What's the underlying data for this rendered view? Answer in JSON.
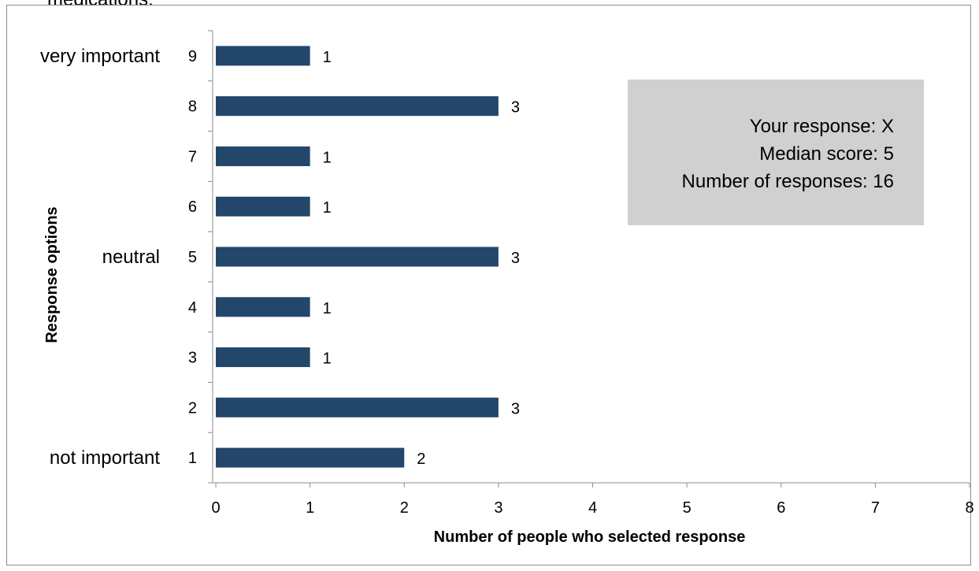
{
  "clipped_caption": "medications.",
  "info_box": {
    "line1": "Your response:  X",
    "line2": "Median score:  5",
    "line3": "Number of responses: 16"
  },
  "chart_data": {
    "type": "bar",
    "orientation": "horizontal",
    "categories": [
      "1",
      "2",
      "3",
      "4",
      "5",
      "6",
      "7",
      "8",
      "9"
    ],
    "values": [
      2,
      3,
      1,
      1,
      3,
      1,
      1,
      3,
      1
    ],
    "category_annotations": [
      {
        "category": "1",
        "text": "not important"
      },
      {
        "category": "5",
        "text": "neutral"
      },
      {
        "category": "9",
        "text": "very important"
      }
    ],
    "xlabel": "Number of people who selected response",
    "ylabel": "Response options",
    "xlim": [
      0,
      8
    ],
    "xticks": [
      0,
      1,
      2,
      3,
      4,
      5,
      6,
      7,
      8
    ],
    "grid": false,
    "bar_color": "#23476a",
    "data_labels": true
  }
}
